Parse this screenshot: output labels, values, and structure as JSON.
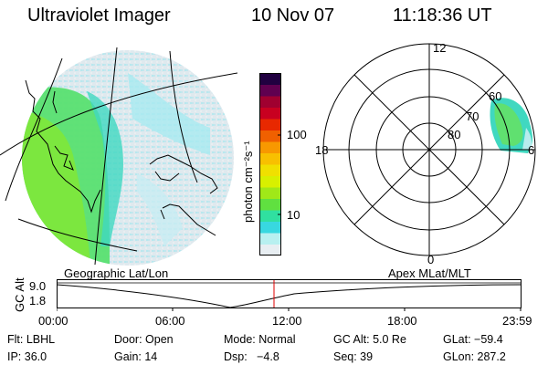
{
  "header": {
    "instrument": "Ultraviolet Imager",
    "date": "10 Nov 07",
    "time": "11:18:36 UT"
  },
  "colorbar": {
    "unit_label": "photon cm⁻²s⁻¹",
    "tick_upper": "100",
    "tick_lower": "10",
    "colors": [
      "#e8eef2",
      "#b8f0f0",
      "#38d8e0",
      "#30e0a0",
      "#60e040",
      "#a0e818",
      "#d8f000",
      "#f0e000",
      "#f8c000",
      "#f89800",
      "#f06000",
      "#e82800",
      "#c80020",
      "#a00030",
      "#600050",
      "#200040"
    ]
  },
  "geo_panel": {
    "label": "Geographic Lat/Lon"
  },
  "polar_panel": {
    "label": "Apex MLat/MLT",
    "mlt_top": "12",
    "mlt_left": "18",
    "mlt_right": "6",
    "mlt_bottom": "0",
    "lat_60": "60",
    "lat_70": "70",
    "lat_80": "80"
  },
  "altitude_plot": {
    "ylabel": "GC Alt",
    "ytick_upper": "9.0",
    "ytick_lower": "1.8",
    "xticks": [
      "00:00",
      "06:00",
      "12:00",
      "18:00",
      "23:59"
    ],
    "marker_color": "#e00000"
  },
  "info": {
    "flt": "Flt: LBHL",
    "door": "Door: Open",
    "mode": "Mode: Normal",
    "gc_alt": "GC Alt: 5.0 Re",
    "glat": "GLat: −59.4",
    "ip": "IP: 36.0",
    "gain": "Gain: 14",
    "dsp": "Dsp:   −4.8",
    "seq": "Seq: 39",
    "glon": "GLon: 287.2"
  }
}
